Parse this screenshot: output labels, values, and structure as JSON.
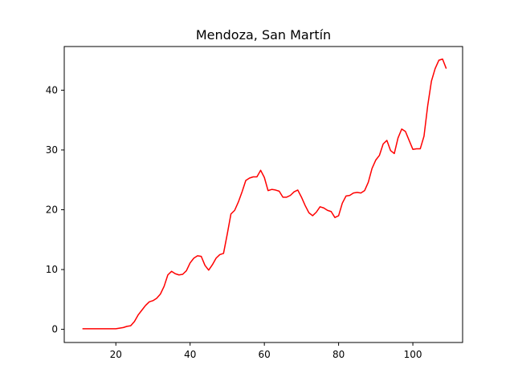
{
  "chart_data": {
    "type": "line",
    "title": "Mendoza, San Martín",
    "xlabel": "",
    "ylabel": "",
    "xlim": [
      6.1,
      113.4
    ],
    "ylim": [
      -2.2,
      47.3
    ],
    "xticks": [
      20,
      40,
      60,
      80,
      100
    ],
    "yticks": [
      0,
      10,
      20,
      30,
      40
    ],
    "grid": false,
    "series": [
      {
        "color": "#ff0000",
        "x": [
          11,
          12,
          13,
          14,
          15,
          16,
          17,
          18,
          19,
          20,
          21,
          22,
          23,
          24,
          25,
          26,
          27,
          28,
          29,
          30,
          31,
          32,
          33,
          34,
          35,
          36,
          37,
          38,
          39,
          40,
          41,
          42,
          43,
          44,
          45,
          46,
          47,
          48,
          49,
          50,
          51,
          52,
          53,
          54,
          55,
          56,
          57,
          58,
          59,
          60,
          61,
          62,
          63,
          64,
          65,
          66,
          67,
          68,
          69,
          70,
          71,
          72,
          73,
          74,
          75,
          76,
          77,
          78,
          79,
          80,
          81,
          82,
          83,
          84,
          85,
          86,
          87,
          88,
          89,
          90,
          91,
          92,
          93,
          94,
          95,
          96,
          97,
          98,
          99,
          100,
          101,
          102,
          103,
          104,
          105,
          106,
          107,
          108,
          109
        ],
        "y": [
          0.1,
          0.1,
          0.1,
          0.1,
          0.1,
          0.1,
          0.1,
          0.1,
          0.1,
          0.1,
          0.2,
          0.3,
          0.5,
          0.6,
          1.3,
          2.4,
          3.2,
          4.0,
          4.6,
          4.8,
          5.2,
          5.9,
          7.2,
          9.1,
          9.7,
          9.3,
          9.1,
          9.2,
          9.8,
          11.1,
          11.9,
          12.3,
          12.2,
          10.7,
          9.9,
          10.8,
          11.9,
          12.5,
          12.7,
          15.9,
          19.3,
          19.9,
          21.3,
          23.0,
          24.9,
          25.3,
          25.5,
          25.5,
          26.6,
          25.4,
          23.2,
          23.4,
          23.3,
          23.1,
          22.1,
          22.1,
          22.4,
          23.0,
          23.3,
          22.1,
          20.7,
          19.5,
          19.0,
          19.6,
          20.5,
          20.3,
          19.9,
          19.7,
          18.7,
          19.0,
          21.1,
          22.3,
          22.4,
          22.8,
          22.9,
          22.8,
          23.2,
          24.6,
          26.9,
          28.3,
          29.1,
          31.0,
          31.6,
          29.9,
          29.4,
          32.0,
          33.5,
          33.1,
          31.6,
          30.1,
          30.2,
          30.2,
          32.3,
          37.4,
          41.5,
          43.6,
          45.0,
          45.2,
          43.6
        ]
      }
    ]
  }
}
